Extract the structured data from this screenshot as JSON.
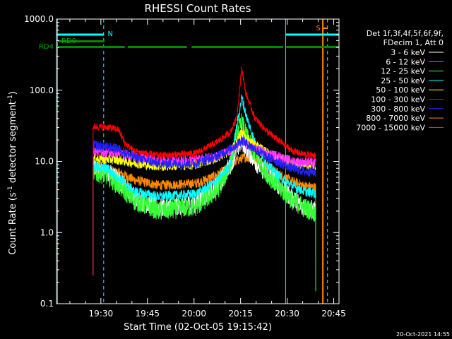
{
  "chart_data": {
    "type": "line",
    "title": "RHESSI Count Rates",
    "xlabel": "Start Time (02-Oct-05 19:15:42)",
    "ylabel_main": "Count Rate (s",
    "ylabel_sup1": "-1",
    "ylabel_mid": " detector segment",
    "ylabel_sup2": "-1",
    "ylabel_end": ")",
    "yscale": "log",
    "ylim": [
      0.1,
      1000
    ],
    "xlim_minutes": [
      0,
      91
    ],
    "x_ticks": [
      {
        "label": "19:30",
        "min": 14.3
      },
      {
        "label": "19:45",
        "min": 29.3
      },
      {
        "label": "20:00",
        "min": 44.3
      },
      {
        "label": "20:15",
        "min": 59.3
      },
      {
        "label": "20:30",
        "min": 74.3
      },
      {
        "label": "20:45",
        "min": 89.3
      }
    ],
    "y_ticks": [
      {
        "label": "0.1",
        "value": 0.1
      },
      {
        "label": "1.0",
        "value": 1
      },
      {
        "label": "10.0",
        "value": 10
      },
      {
        "label": "100.0",
        "value": 100
      },
      {
        "label": "1000.0",
        "value": 1000
      }
    ],
    "legend_header": [
      "Det 1f,3f,4f,5f,6f,9f,",
      "FDecim 1, Att 0"
    ],
    "series": [
      {
        "name": "3 - 6 keV",
        "color": "#ffffff",
        "points": [
          [
            11.8,
            8.0
          ],
          [
            16,
            7.5
          ],
          [
            22,
            4.5
          ],
          [
            25,
            3.0
          ],
          [
            33,
            2.2
          ],
          [
            45,
            2.6
          ],
          [
            52,
            4.5
          ],
          [
            56,
            9
          ],
          [
            58.5,
            16
          ],
          [
            59.7,
            19
          ],
          [
            61,
            16
          ],
          [
            64,
            10
          ],
          [
            68,
            6.5
          ],
          [
            72,
            4.5
          ],
          [
            76,
            3.0
          ],
          [
            80,
            2.3
          ],
          [
            83.5,
            2.0
          ]
        ]
      },
      {
        "name": "6 - 12 keV",
        "color": "#ff33ff",
        "points": [
          [
            11.8,
            14
          ],
          [
            20,
            13
          ],
          [
            25,
            12
          ],
          [
            33,
            10
          ],
          [
            45,
            10.5
          ],
          [
            52,
            12
          ],
          [
            56,
            14
          ],
          [
            58.5,
            17
          ],
          [
            59.7,
            19
          ],
          [
            61,
            17
          ],
          [
            64,
            15
          ],
          [
            68,
            13
          ],
          [
            72,
            11.5
          ],
          [
            76,
            10
          ],
          [
            80,
            9.8
          ],
          [
            83.5,
            9.6
          ]
        ]
      },
      {
        "name": "12 - 25 keV",
        "color": "#33ff33",
        "points": [
          [
            11.8,
            7.0
          ],
          [
            16,
            6.5
          ],
          [
            22,
            3.8
          ],
          [
            25,
            2.8
          ],
          [
            33,
            2.0
          ],
          [
            45,
            2.3
          ],
          [
            52,
            4.0
          ],
          [
            56,
            9
          ],
          [
            58.5,
            28
          ],
          [
            59.7,
            35
          ],
          [
            61,
            24
          ],
          [
            64,
            12
          ],
          [
            68,
            6.5
          ],
          [
            72,
            4.2
          ],
          [
            76,
            2.8
          ],
          [
            80,
            2.2
          ],
          [
            83.5,
            1.9
          ]
        ]
      },
      {
        "name": "25 - 50 keV",
        "color": "#00ffff",
        "points": [
          [
            11.8,
            8.5
          ],
          [
            16,
            8.0
          ],
          [
            22,
            5.0
          ],
          [
            25,
            3.8
          ],
          [
            33,
            3.2
          ],
          [
            45,
            3.5
          ],
          [
            52,
            5.5
          ],
          [
            56,
            9
          ],
          [
            58.5,
            40
          ],
          [
            59.7,
            80
          ],
          [
            61,
            45
          ],
          [
            64,
            18
          ],
          [
            68,
            9
          ],
          [
            72,
            6
          ],
          [
            76,
            4.5
          ],
          [
            80,
            3.8
          ],
          [
            83.5,
            3.5
          ]
        ]
      },
      {
        "name": "50 - 100 keV",
        "color": "#ffff00",
        "points": [
          [
            11.8,
            11
          ],
          [
            20,
            10.5
          ],
          [
            25,
            9.5
          ],
          [
            33,
            8.5
          ],
          [
            45,
            9
          ],
          [
            52,
            11.5
          ],
          [
            56,
            14
          ],
          [
            58.5,
            20
          ],
          [
            59.7,
            28
          ],
          [
            61,
            22
          ],
          [
            64,
            17
          ],
          [
            68,
            13
          ],
          [
            72,
            11
          ],
          [
            76,
            9.5
          ],
          [
            80,
            9
          ],
          [
            83.5,
            8.8
          ]
        ]
      },
      {
        "name": "100 - 300 keV",
        "color": "#ff0000",
        "points": [
          [
            11.8,
            31
          ],
          [
            17,
            30
          ],
          [
            20,
            28
          ],
          [
            22,
            18
          ],
          [
            25,
            14
          ],
          [
            33,
            12
          ],
          [
            45,
            13
          ],
          [
            52,
            19
          ],
          [
            56,
            26
          ],
          [
            58,
            40
          ],
          [
            59.7,
            205
          ],
          [
            61,
            90
          ],
          [
            64,
            40
          ],
          [
            68,
            26
          ],
          [
            72,
            19
          ],
          [
            76,
            14
          ],
          [
            80,
            12.5
          ],
          [
            83.5,
            12
          ]
        ]
      },
      {
        "name": "300 - 800 keV",
        "color": "#2222ff",
        "points": [
          [
            11.8,
            17
          ],
          [
            20,
            15
          ],
          [
            25,
            11.5
          ],
          [
            33,
            9.2
          ],
          [
            45,
            9.4
          ],
          [
            52,
            12
          ],
          [
            56,
            15
          ],
          [
            58.5,
            18
          ],
          [
            59.7,
            20
          ],
          [
            61,
            18
          ],
          [
            64,
            15
          ],
          [
            68,
            11.5
          ],
          [
            72,
            9.5
          ],
          [
            76,
            8
          ],
          [
            80,
            7.2
          ],
          [
            83.5,
            7
          ]
        ]
      },
      {
        "name": "800 - 7000 keV",
        "color": "#ff8800",
        "points": [
          [
            11.8,
            7.5
          ],
          [
            20,
            7
          ],
          [
            25,
            5.5
          ],
          [
            33,
            4.6
          ],
          [
            45,
            4.9
          ],
          [
            52,
            6.5
          ],
          [
            56,
            8.5
          ],
          [
            58.5,
            10.5
          ],
          [
            61,
            11.5
          ],
          [
            64,
            10.5
          ],
          [
            68,
            8.5
          ],
          [
            72,
            6.5
          ],
          [
            76,
            5.2
          ],
          [
            80,
            4.5
          ],
          [
            83.5,
            4.3
          ]
        ]
      },
      {
        "name": "7000 - 15000 keV",
        "color": "#aa6600",
        "points": []
      }
    ],
    "attenuator_bars": [
      {
        "label": "RD0",
        "color": "#008800",
        "segments": [
          [
            0,
            15.5
          ]
        ]
      },
      {
        "label": "RD4",
        "color": "#008800",
        "segments": [
          [
            0,
            22
          ],
          [
            23,
            42
          ],
          [
            43.5,
            73
          ],
          [
            74,
            91
          ]
        ]
      }
    ],
    "annotations": [
      {
        "label": "N",
        "color": "#00ffff"
      },
      {
        "label": "S",
        "color": "#ff8800"
      }
    ]
  },
  "footer_date": "20-Oct-2021 14:55"
}
